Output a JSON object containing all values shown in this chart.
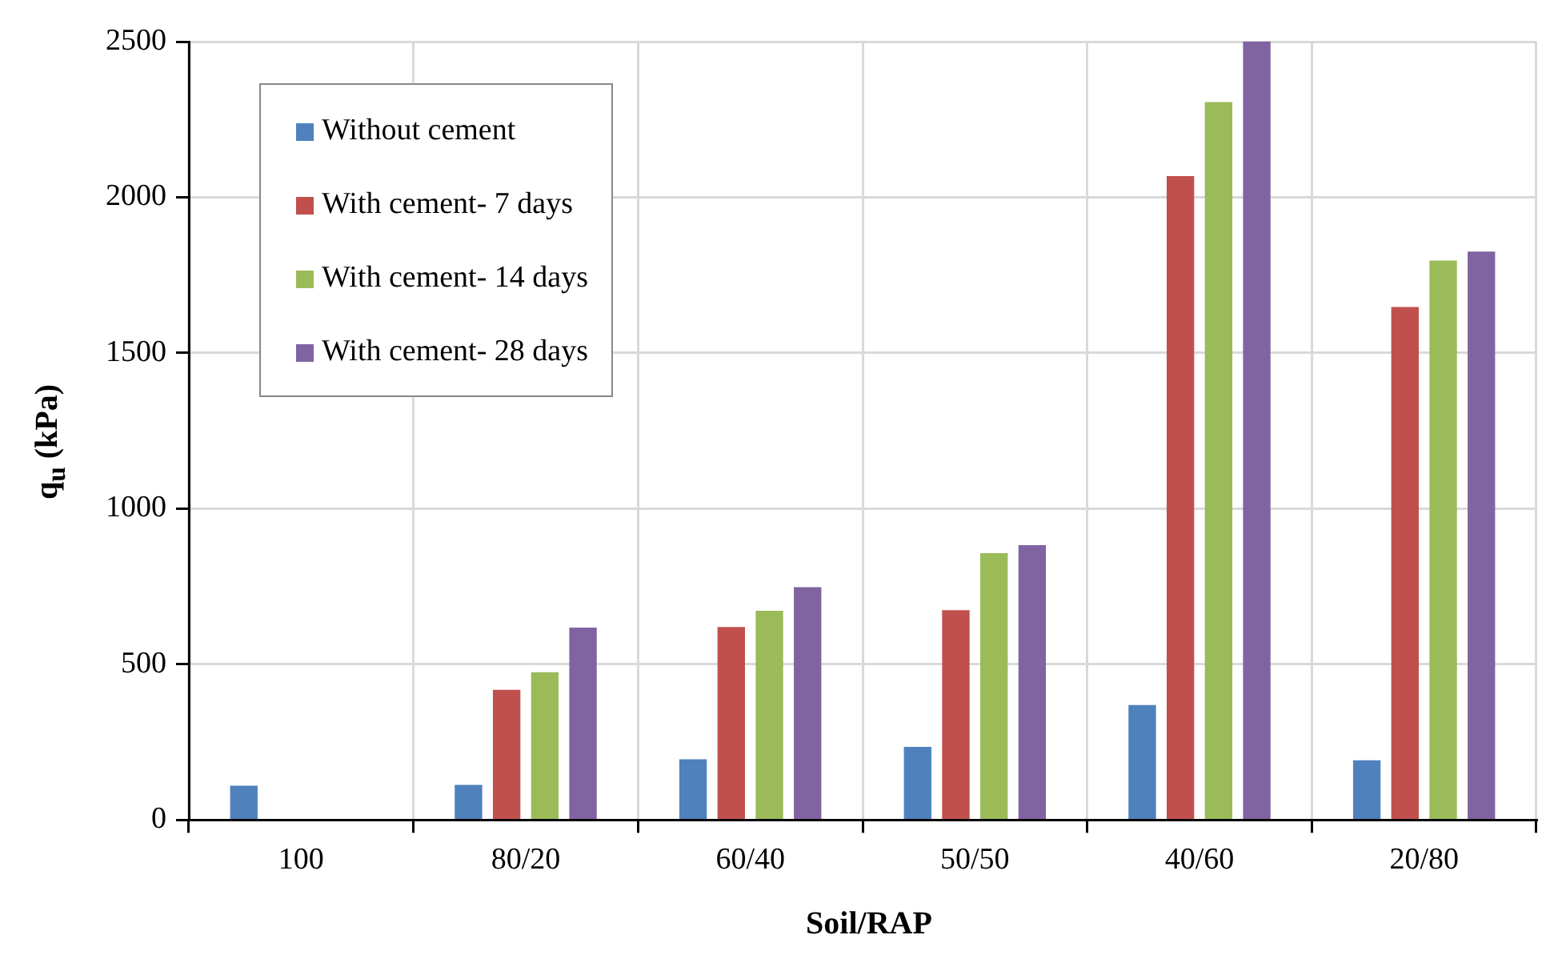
{
  "chart_data": {
    "type": "bar",
    "xlabel": "Soil/RAP",
    "ylabel": "q$_{u}$ (kPa)",
    "categories": [
      "100",
      "80/20",
      "60/40",
      "50/50",
      "40/60",
      "20/80"
    ],
    "series": [
      {
        "name": "Without cement",
        "color": "#4f81bd",
        "values": [
          110,
          113,
          195,
          235,
          369,
          192
        ]
      },
      {
        "name": "With cement- 7 days",
        "color": "#c0504d",
        "values": [
          null,
          418,
          620,
          674,
          2068,
          1648
        ]
      },
      {
        "name": "With cement- 14 days",
        "color": "#9bbb59",
        "values": [
          null,
          475,
          672,
          857,
          2306,
          1797
        ]
      },
      {
        "name": "With cement- 28 days",
        "color": "#8064a2",
        "values": [
          null,
          618,
          748,
          883,
          2500,
          1826
        ]
      }
    ],
    "ylim": [
      0,
      2500
    ],
    "yticks": [
      0,
      500,
      1000,
      1500,
      2000,
      2500
    ],
    "grid": true,
    "legend": "top left"
  }
}
